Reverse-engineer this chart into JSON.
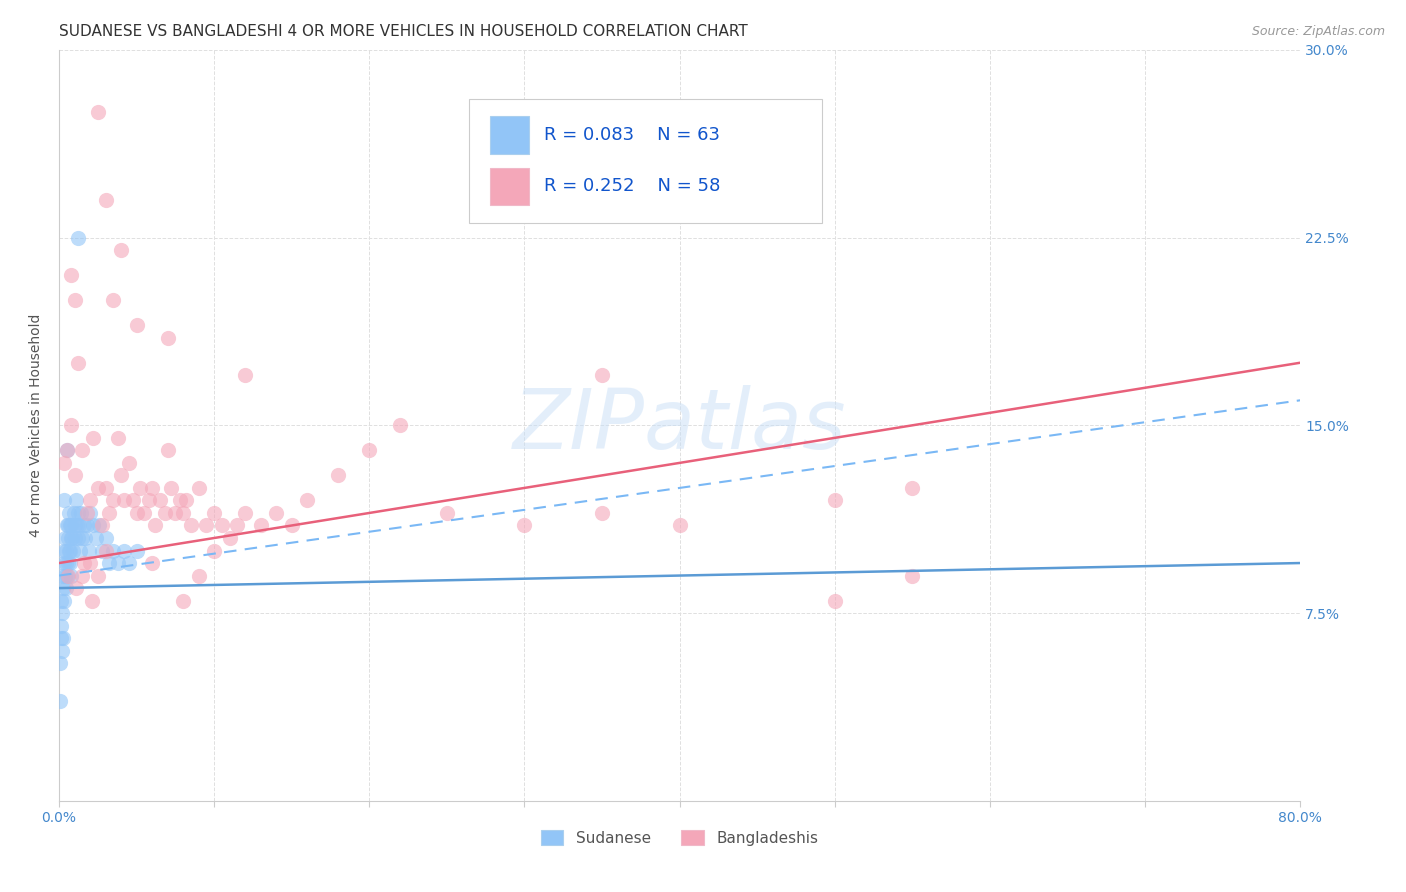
{
  "title": "SUDANESE VS BANGLADESHI 4 OR MORE VEHICLES IN HOUSEHOLD CORRELATION CHART",
  "source_text": "Source: ZipAtlas.com",
  "ylabel": "4 or more Vehicles in Household",
  "xlim": [
    0.0,
    80.0
  ],
  "ylim": [
    0.0,
    30.0
  ],
  "color_sudanese": "#92c5f7",
  "color_bangladeshi": "#f4a7b9",
  "color_line_sudanese": "#5b9bd5",
  "color_line_bangladeshi": "#e8607a",
  "color_dash_sudanese": "#7ab8f5",
  "watermark_color": "#c8dff7",
  "background_color": "#ffffff",
  "grid_color": "#e0e0e0",
  "tick_color": "#4488cc",
  "title_color": "#333333",
  "ylabel_color": "#555555",
  "legend_text_color": "#1155cc",
  "sudanese_x": [
    0.05,
    0.08,
    0.1,
    0.12,
    0.15,
    0.18,
    0.2,
    0.22,
    0.25,
    0.28,
    0.3,
    0.32,
    0.35,
    0.38,
    0.4,
    0.42,
    0.45,
    0.48,
    0.5,
    0.52,
    0.55,
    0.58,
    0.6,
    0.62,
    0.65,
    0.68,
    0.7,
    0.72,
    0.75,
    0.78,
    0.8,
    0.85,
    0.9,
    0.95,
    1.0,
    1.05,
    1.1,
    1.15,
    1.2,
    1.25,
    1.3,
    1.35,
    1.4,
    1.5,
    1.6,
    1.7,
    1.8,
    1.9,
    2.0,
    2.2,
    2.4,
    2.6,
    2.8,
    3.0,
    3.2,
    3.5,
    3.8,
    4.2,
    4.5,
    5.0,
    1.2,
    0.5,
    0.3
  ],
  "sudanese_y": [
    5.5,
    4.0,
    6.5,
    7.0,
    8.0,
    6.0,
    9.0,
    7.5,
    8.5,
    6.5,
    9.5,
    8.0,
    10.0,
    9.0,
    10.5,
    8.5,
    9.5,
    10.0,
    11.0,
    9.0,
    10.5,
    9.5,
    11.0,
    10.0,
    11.5,
    9.5,
    10.0,
    11.0,
    10.5,
    9.0,
    11.0,
    10.5,
    10.0,
    11.5,
    11.0,
    10.5,
    12.0,
    11.0,
    10.5,
    11.5,
    11.0,
    10.0,
    11.5,
    10.5,
    11.0,
    10.5,
    11.0,
    10.0,
    11.5,
    11.0,
    10.5,
    11.0,
    10.0,
    10.5,
    9.5,
    10.0,
    9.5,
    10.0,
    9.5,
    10.0,
    22.5,
    14.0,
    12.0
  ],
  "bangladeshi_x": [
    0.3,
    0.5,
    0.8,
    1.0,
    1.2,
    1.5,
    1.8,
    2.0,
    2.2,
    2.5,
    2.8,
    3.0,
    3.2,
    3.5,
    3.8,
    4.0,
    4.2,
    4.5,
    4.8,
    5.0,
    5.2,
    5.5,
    5.8,
    6.0,
    6.2,
    6.5,
    6.8,
    7.0,
    7.2,
    7.5,
    7.8,
    8.0,
    8.2,
    8.5,
    9.0,
    9.5,
    10.0,
    10.5,
    11.0,
    11.5,
    12.0,
    13.0,
    14.0,
    15.0,
    16.0,
    18.0,
    20.0,
    22.0,
    25.0,
    30.0,
    35.0,
    40.0,
    50.0,
    55.0,
    0.6,
    1.1,
    1.6,
    2.1
  ],
  "bangladeshi_y": [
    13.5,
    14.0,
    21.0,
    20.0,
    17.5,
    14.0,
    11.5,
    12.0,
    14.5,
    12.5,
    11.0,
    12.5,
    11.5,
    12.0,
    14.5,
    13.0,
    12.0,
    13.5,
    12.0,
    11.5,
    12.5,
    11.5,
    12.0,
    12.5,
    11.0,
    12.0,
    11.5,
    14.0,
    12.5,
    11.5,
    12.0,
    11.5,
    12.0,
    11.0,
    12.5,
    11.0,
    11.5,
    11.0,
    10.5,
    11.0,
    11.5,
    11.0,
    11.5,
    11.0,
    12.0,
    13.0,
    14.0,
    15.0,
    11.5,
    11.0,
    11.5,
    11.0,
    12.0,
    12.5,
    9.0,
    8.5,
    9.5,
    8.0
  ],
  "ban_extra_x": [
    2.5,
    3.0,
    4.0,
    3.5,
    5.0,
    7.0,
    12.0,
    35.0,
    50.0,
    0.8,
    1.0,
    1.5,
    2.0,
    2.5,
    3.0,
    6.0,
    8.0,
    9.0,
    10.0,
    55.0
  ],
  "ban_extra_y": [
    27.5,
    24.0,
    22.0,
    20.0,
    19.0,
    18.5,
    17.0,
    17.0,
    8.0,
    15.0,
    13.0,
    9.0,
    9.5,
    9.0,
    10.0,
    9.5,
    8.0,
    9.0,
    10.0,
    9.0
  ],
  "sud_line_x0": 0,
  "sud_line_x1": 80,
  "sud_line_y0": 8.5,
  "sud_line_y1": 9.5,
  "ban_line_y0": 9.5,
  "ban_line_y1": 17.5,
  "dash_line_y0": 9.0,
  "dash_line_y1": 16.0,
  "title_fontsize": 11,
  "tick_fontsize": 10,
  "source_fontsize": 9,
  "ylabel_fontsize": 10,
  "legend_fontsize": 13
}
